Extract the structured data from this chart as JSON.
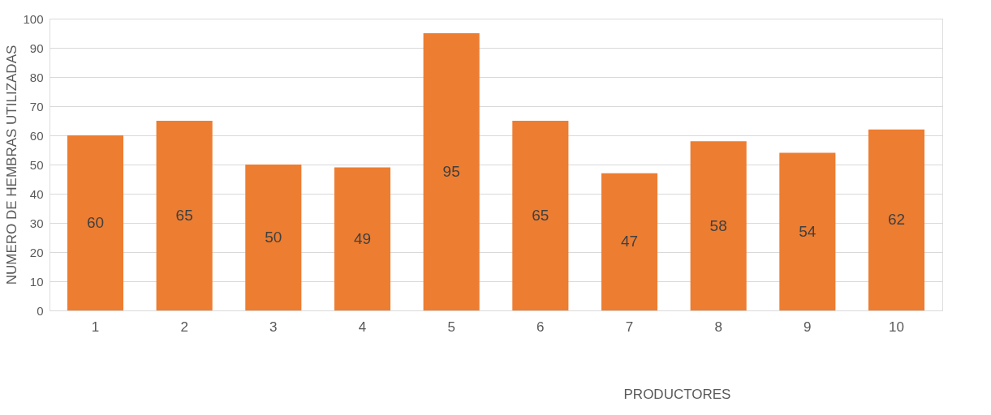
{
  "chart_data": {
    "type": "bar",
    "xlabel": "PRODUCTORES",
    "ylabel": "NUMERO DE HEMBRAS UTILIZADAS",
    "categories": [
      "1",
      "2",
      "3",
      "4",
      "5",
      "6",
      "7",
      "8",
      "9",
      "10"
    ],
    "values": [
      60,
      65,
      50,
      49,
      95,
      65,
      47,
      58,
      54,
      62
    ],
    "color": "#ed7d31",
    "ylim": [
      0,
      100
    ],
    "yticks": [
      0,
      10,
      20,
      30,
      40,
      50,
      60,
      70,
      80,
      90,
      100
    ],
    "grid": "y",
    "data_labels": true
  }
}
